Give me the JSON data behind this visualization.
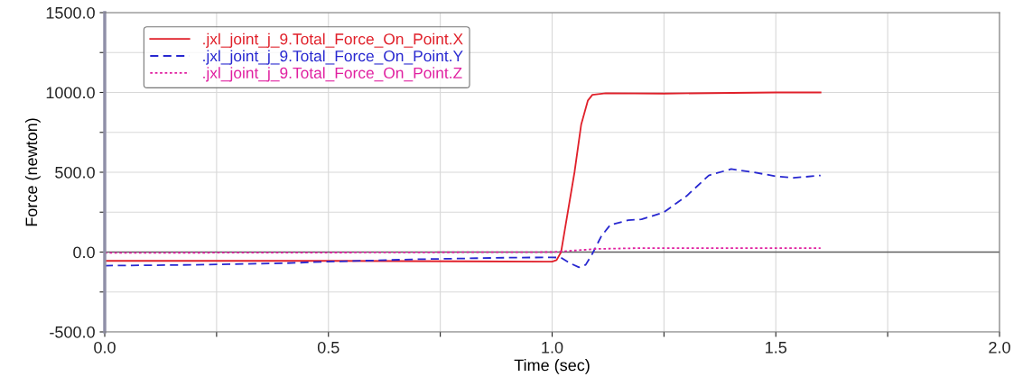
{
  "chart_data": {
    "type": "line",
    "xlabel": "Time (sec)",
    "ylabel": "Force (newton)",
    "xlim": [
      0,
      2
    ],
    "ylim": [
      -500,
      1500
    ],
    "xticks": [
      {
        "value": 0,
        "label": "0.0"
      },
      {
        "value": 0.25,
        "label": null
      },
      {
        "value": 0.5,
        "label": "0.5"
      },
      {
        "value": 0.75,
        "label": null
      },
      {
        "value": 1,
        "label": "1.0"
      },
      {
        "value": 1.25,
        "label": null
      },
      {
        "value": 1.5,
        "label": "1.5"
      },
      {
        "value": 1.75,
        "label": null
      },
      {
        "value": 2,
        "label": "2.0"
      }
    ],
    "yticks": [
      {
        "value": -500,
        "label": "-500.0"
      },
      {
        "value": -250,
        "label": null
      },
      {
        "value": 0,
        "label": "0.0"
      },
      {
        "value": 250,
        "label": null
      },
      {
        "value": 500,
        "label": "500.0"
      },
      {
        "value": 750,
        "label": null
      },
      {
        "value": 1000,
        "label": "1000.0"
      },
      {
        "value": 1250,
        "label": null
      },
      {
        "value": 1500,
        "label": "1500.0"
      }
    ],
    "grid": true,
    "legend": "top left",
    "ref_lines": [
      {
        "axis": "y",
        "value": 0,
        "color": "#606060"
      }
    ],
    "series": [
      {
        "name": ".jxl_joint_j_9.Total_Force_On_Point.X",
        "color": "#e0202a",
        "line_style": "solid",
        "x": [
          0,
          0.5,
          0.8,
          0.98,
          1.0,
          1.01,
          1.02,
          1.035,
          1.05,
          1.065,
          1.08,
          1.09,
          1.12,
          1.25,
          1.5,
          1.6
        ],
        "values": [
          -55,
          -55,
          -58,
          -60,
          -60,
          -50,
          0,
          250,
          500,
          800,
          950,
          985,
          995,
          993,
          1000,
          1000
        ]
      },
      {
        "name": ".jxl_joint_j_9.Total_Force_On_Point.Y",
        "color": "#2828d0",
        "line_style": "dashed",
        "x": [
          0,
          0.2,
          0.4,
          0.5,
          0.7,
          0.9,
          1.0,
          1.02,
          1.04,
          1.06,
          1.075,
          1.09,
          1.11,
          1.13,
          1.17,
          1.2,
          1.25,
          1.3,
          1.35,
          1.4,
          1.45,
          1.5,
          1.54,
          1.6
        ],
        "values": [
          -85,
          -80,
          -70,
          -60,
          -45,
          -35,
          -33,
          -35,
          -70,
          -95,
          -80,
          -10,
          100,
          170,
          200,
          205,
          250,
          350,
          480,
          520,
          500,
          475,
          465,
          480
        ]
      },
      {
        "name": ".jxl_joint_j_9.Total_Force_On_Point.Z",
        "color": "#e020a0",
        "line_style": "dotted",
        "x": [
          0,
          0.5,
          1.0,
          1.05,
          1.1,
          1.2,
          1.6
        ],
        "values": [
          -5,
          -3,
          0,
          10,
          20,
          25,
          25
        ]
      }
    ]
  }
}
